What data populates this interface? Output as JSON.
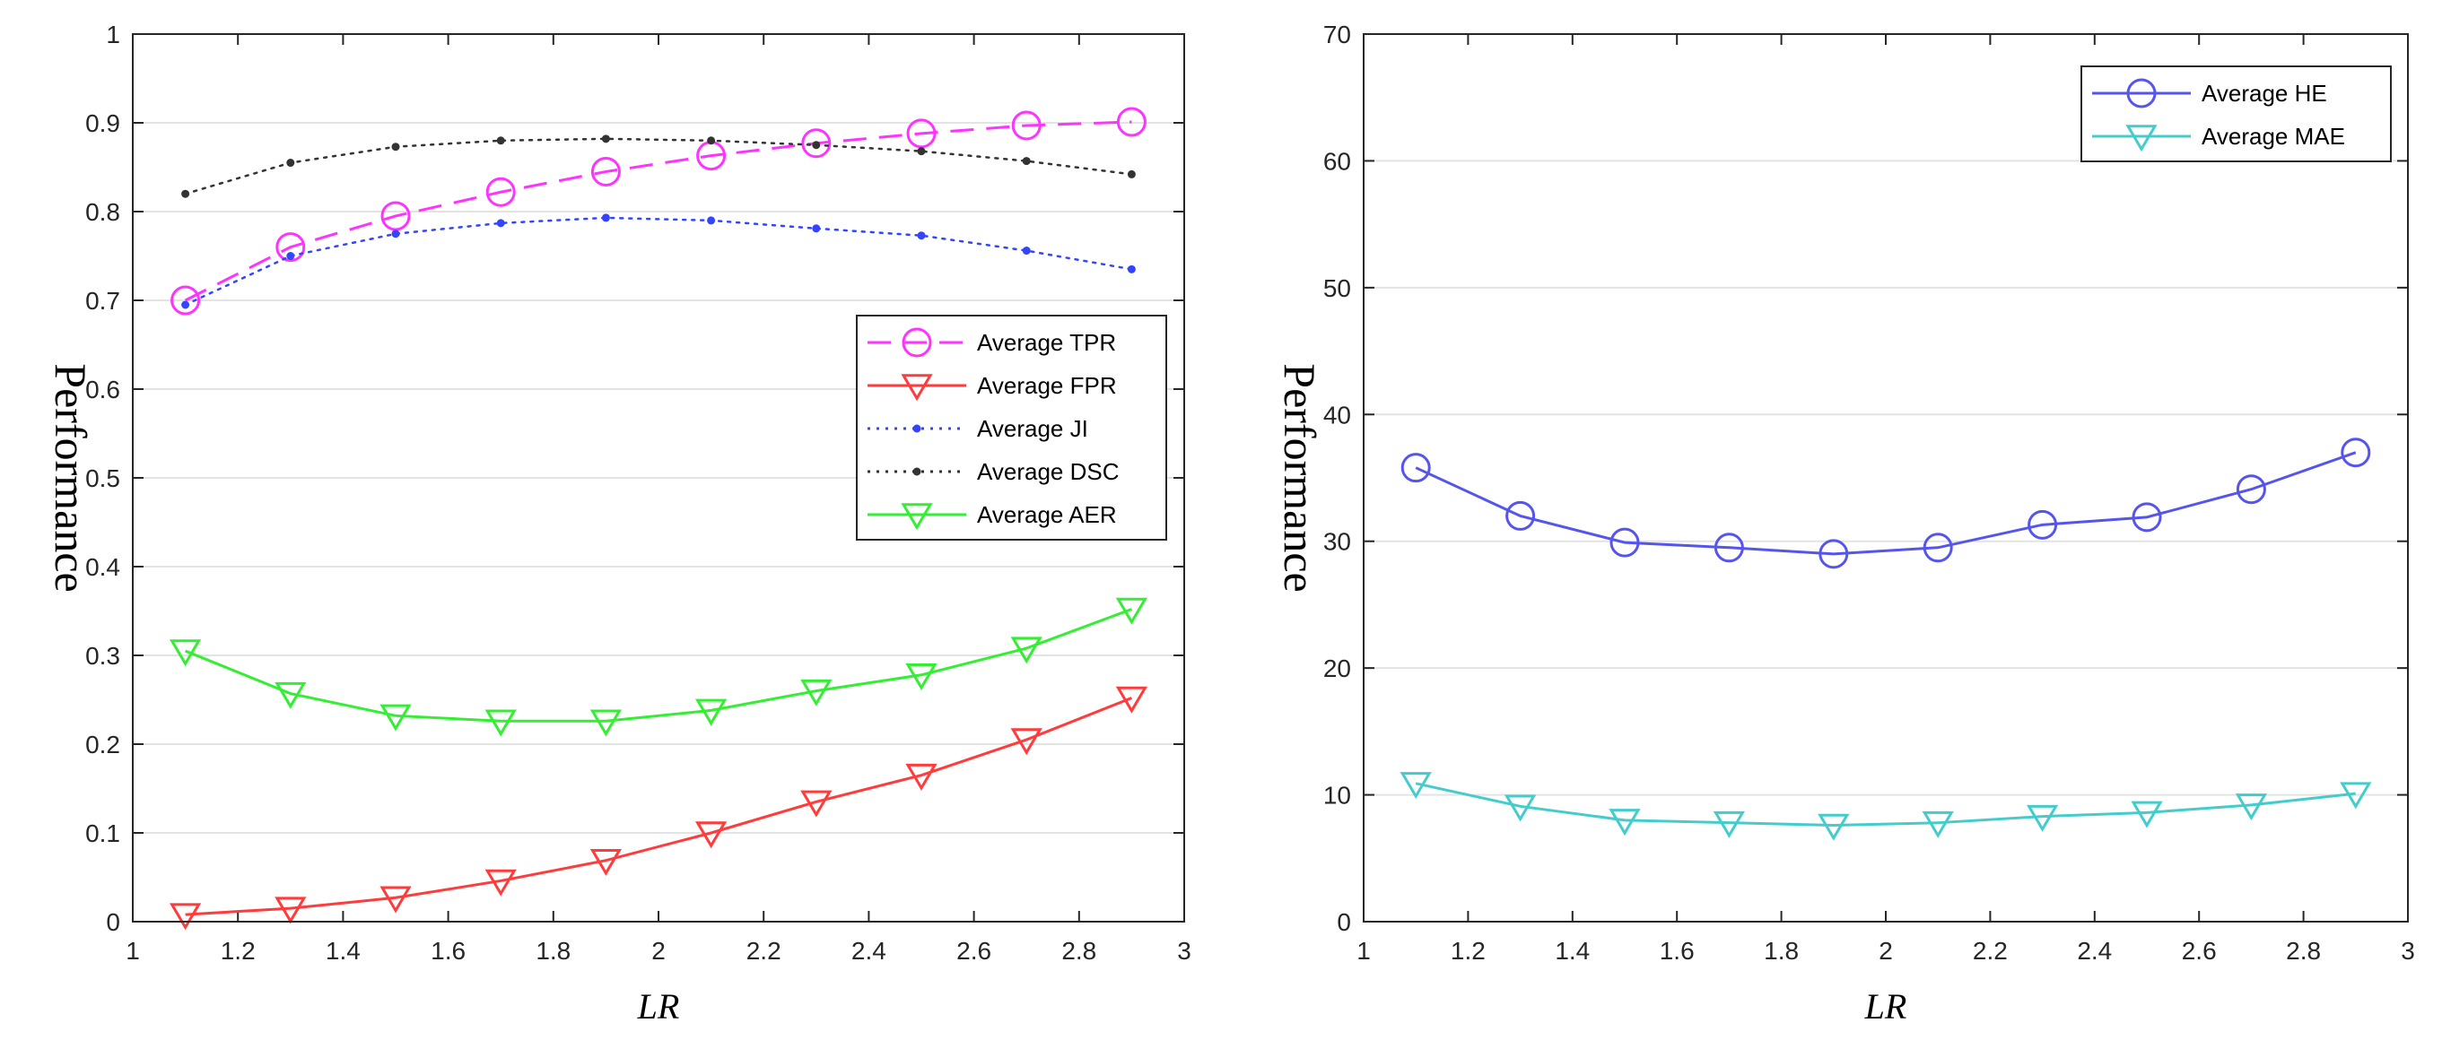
{
  "chart_data": [
    {
      "type": "line",
      "title": "",
      "xlabel": "LR",
      "ylabel": "Performance",
      "xlim": [
        1,
        3
      ],
      "ylim": [
        0,
        1
      ],
      "grid": "horizontal",
      "legend_position": "middle-right",
      "x": [
        1.1,
        1.3,
        1.5,
        1.7,
        1.9,
        2.1,
        2.3,
        2.5,
        2.7,
        2.9
      ],
      "xticks": [
        "1",
        "1.2",
        "1.4",
        "1.6",
        "1.8",
        "2",
        "2.2",
        "2.4",
        "2.6",
        "2.8",
        "3"
      ],
      "yticks": [
        "0",
        "0.1",
        "0.2",
        "0.3",
        "0.4",
        "0.5",
        "0.6",
        "0.7",
        "0.8",
        "0.9",
        "1"
      ],
      "series": [
        {
          "name": "Average TPR",
          "color": "#ff33ff",
          "dash": "dashed",
          "marker": "circle",
          "values": [
            0.7,
            0.76,
            0.795,
            0.822,
            0.845,
            0.863,
            0.877,
            0.888,
            0.897,
            0.901
          ]
        },
        {
          "name": "Average FPR",
          "color": "#ff3b3b",
          "dash": "solid",
          "marker": "triangle-down",
          "values": [
            0.008,
            0.015,
            0.027,
            0.046,
            0.069,
            0.1,
            0.135,
            0.165,
            0.205,
            0.252
          ]
        },
        {
          "name": "Average JI",
          "color": "#3344ff",
          "dash": "dotted",
          "marker": "dot",
          "values": [
            0.695,
            0.75,
            0.775,
            0.787,
            0.793,
            0.79,
            0.781,
            0.773,
            0.756,
            0.735
          ]
        },
        {
          "name": "Average DSC",
          "color": "#333333",
          "dash": "dotted",
          "marker": "dot",
          "values": [
            0.82,
            0.855,
            0.873,
            0.88,
            0.882,
            0.88,
            0.875,
            0.868,
            0.857,
            0.842
          ]
        },
        {
          "name": "Average AER",
          "color": "#33ee33",
          "dash": "solid",
          "marker": "triangle-down",
          "values": [
            0.305,
            0.257,
            0.232,
            0.226,
            0.226,
            0.238,
            0.26,
            0.278,
            0.308,
            0.352
          ]
        }
      ]
    },
    {
      "type": "line",
      "title": "",
      "xlabel": "LR",
      "ylabel": "Performance",
      "xlim": [
        1,
        3
      ],
      "ylim": [
        0,
        70
      ],
      "grid": "horizontal",
      "legend_position": "top-right",
      "x": [
        1.1,
        1.3,
        1.5,
        1.7,
        1.9,
        2.1,
        2.3,
        2.5,
        2.7,
        2.9
      ],
      "xticks": [
        "1",
        "1.2",
        "1.4",
        "1.6",
        "1.8",
        "2",
        "2.2",
        "2.4",
        "2.6",
        "2.8",
        "3"
      ],
      "yticks": [
        "0",
        "10",
        "20",
        "30",
        "40",
        "50",
        "60",
        "70"
      ],
      "series": [
        {
          "name": "Average HE",
          "color": "#5555ee",
          "dash": "solid",
          "marker": "circle",
          "values": [
            35.8,
            32.0,
            29.9,
            29.5,
            29.0,
            29.5,
            31.3,
            31.9,
            34.1,
            37.0
          ]
        },
        {
          "name": "Average MAE",
          "color": "#44cccc",
          "dash": "solid",
          "marker": "triangle-down",
          "values": [
            10.9,
            9.1,
            8.0,
            7.8,
            7.6,
            7.8,
            8.3,
            8.6,
            9.2,
            10.1
          ]
        }
      ]
    }
  ]
}
